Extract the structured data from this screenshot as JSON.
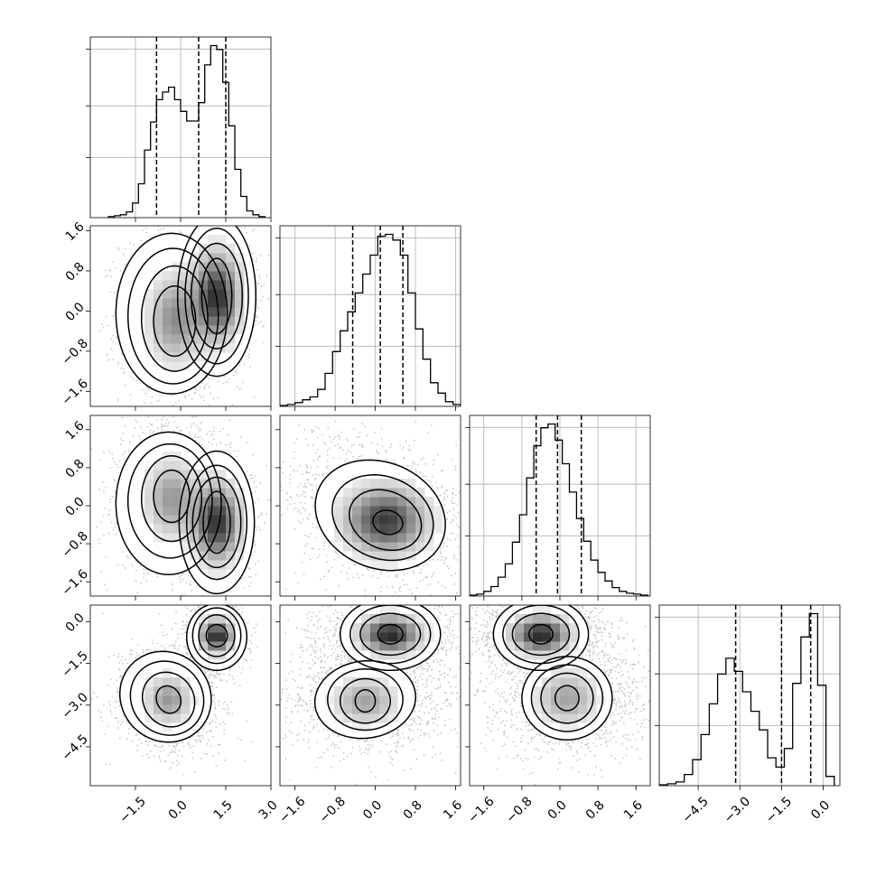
{
  "chart_data": {
    "type": "corner",
    "title": "",
    "n_params": 4,
    "ranges": [
      [
        -3.0,
        3.0
      ],
      [
        -1.9,
        1.7
      ],
      [
        -1.9,
        1.9
      ],
      [
        -5.9,
        0.6
      ]
    ],
    "ticks": [
      [
        "-1.5",
        "0.0",
        "1.5",
        "3.0"
      ],
      [
        "-1.6",
        "-0.8",
        "0.0",
        "0.8",
        "1.6"
      ],
      [
        "-1.6",
        "-0.8",
        "0.0",
        "0.8",
        "1.6"
      ],
      [
        "-4.5",
        "-3.0",
        "-1.5",
        "0.0"
      ]
    ],
    "grid": true,
    "quantiles": [
      [
        -0.8,
        0.6,
        1.5
      ],
      [
        -0.45,
        0.1,
        0.55
      ],
      [
        -0.5,
        -0.05,
        0.45
      ],
      [
        -3.15,
        -1.5,
        -0.45
      ]
    ],
    "histograms": [
      {
        "bin_edges": [
          -2.4,
          -2.2,
          -2.0,
          -1.8,
          -1.6,
          -1.4,
          -1.2,
          -1.0,
          -0.8,
          -0.6,
          -0.4,
          -0.2,
          0.0,
          0.2,
          0.4,
          0.6,
          0.8,
          1.0,
          1.2,
          1.4,
          1.6,
          1.8,
          2.0,
          2.2,
          2.4,
          2.6,
          2.8
        ],
        "counts": [
          1,
          2,
          3,
          6,
          15,
          35,
          70,
          99,
          122,
          130,
          135,
          122,
          110,
          100,
          100,
          119,
          158,
          178,
          174,
          140,
          95,
          50,
          22,
          7,
          3,
          1
        ]
      },
      {
        "bin_edges": [
          -1.9,
          -1.75,
          -1.6,
          -1.45,
          -1.3,
          -1.15,
          -1.0,
          -0.85,
          -0.7,
          -0.55,
          -0.4,
          -0.25,
          -0.1,
          0.05,
          0.2,
          0.35,
          0.5,
          0.65,
          0.8,
          0.95,
          1.1,
          1.25,
          1.4,
          1.55,
          1.7
        ],
        "counts": [
          1,
          2,
          4,
          7,
          10,
          18,
          35,
          58,
          80,
          100,
          120,
          140,
          160,
          180,
          182,
          176,
          160,
          120,
          82,
          50,
          25,
          14,
          5,
          2
        ]
      },
      {
        "bin_edges": [
          -1.9,
          -1.75,
          -1.6,
          -1.45,
          -1.3,
          -1.15,
          -1.0,
          -0.85,
          -0.7,
          -0.55,
          -0.4,
          -0.25,
          -0.1,
          0.05,
          0.2,
          0.35,
          0.5,
          0.65,
          0.8,
          0.95,
          1.1,
          1.25,
          1.4,
          1.55,
          1.7,
          1.85
        ],
        "counts": [
          1,
          2,
          5,
          10,
          20,
          34,
          57,
          86,
          125,
          159,
          178,
          182,
          165,
          140,
          110,
          82,
          58,
          38,
          25,
          16,
          9,
          5,
          3,
          2,
          1
        ]
      },
      {
        "bin_edges": [
          -5.9,
          -5.6,
          -5.3,
          -5.0,
          -4.7,
          -4.4,
          -4.1,
          -3.8,
          -3.5,
          -3.2,
          -2.9,
          -2.6,
          -2.3,
          -2.0,
          -1.7,
          -1.4,
          -1.1,
          -0.8,
          -0.5,
          -0.2,
          0.1,
          0.4
        ],
        "counts": [
          1,
          2,
          4,
          12,
          28,
          55,
          88,
          120,
          137,
          123,
          101,
          80,
          60,
          30,
          20,
          40,
          110,
          160,
          185,
          108,
          10
        ]
      }
    ],
    "pairs": [
      {
        "x": 0,
        "y": 1,
        "contours": [
          {
            "level": 0.39,
            "rings": [
              [
                -0.2,
                -0.2,
                0.7,
                0.7,
                0
              ],
              [
                1.2,
                0.3,
                0.5,
                0.75,
                0
              ]
            ]
          },
          {
            "level": 0.86,
            "rings": [
              [
                -0.2,
                -0.15,
                1.1,
                1.05,
                0
              ],
              [
                1.2,
                0.3,
                0.85,
                1.05,
                0
              ]
            ]
          },
          {
            "level": 1.18,
            "rings": [
              [
                -0.25,
                -0.1,
                1.5,
                1.35,
                0
              ],
              [
                1.2,
                0.3,
                1.05,
                1.35,
                0
              ]
            ]
          },
          {
            "level": 1.5,
            "rings": [
              [
                -0.3,
                -0.05,
                1.85,
                1.6,
                0
              ],
              [
                1.2,
                0.3,
                1.3,
                1.6,
                0
              ]
            ]
          }
        ],
        "density_blobs": [
          [
            -0.2,
            -0.15,
            0.8,
            0.8,
            0.5
          ],
          [
            1.2,
            0.3,
            0.7,
            0.8,
            0.9
          ]
        ],
        "scatter_blobs": [
          [
            -0.2,
            -0.15,
            0.9,
            0.85,
            0
          ],
          [
            1.2,
            0.3,
            0.6,
            0.7,
            0
          ]
        ]
      },
      {
        "x": 0,
        "y": 2,
        "contours": [
          {
            "level": 0.39,
            "rings": [
              [
                -0.3,
                0.2,
                0.6,
                0.55,
                0
              ],
              [
                1.2,
                -0.35,
                0.45,
                0.65,
                0
              ]
            ]
          },
          {
            "level": 0.86,
            "rings": [
              [
                -0.3,
                0.15,
                1.0,
                0.9,
                0
              ],
              [
                1.2,
                -0.35,
                0.8,
                0.95,
                0
              ]
            ]
          },
          {
            "level": 1.18,
            "rings": [
              [
                -0.35,
                0.1,
                1.4,
                1.2,
                0
              ],
              [
                1.2,
                -0.35,
                1.0,
                1.2,
                0
              ]
            ]
          },
          {
            "level": 1.5,
            "rings": [
              [
                -0.4,
                0.05,
                1.75,
                1.5,
                0
              ],
              [
                1.2,
                -0.35,
                1.25,
                1.5,
                0
              ]
            ]
          }
        ],
        "density_blobs": [
          [
            -0.3,
            0.15,
            0.8,
            0.75,
            0.45
          ],
          [
            1.2,
            -0.35,
            0.7,
            0.75,
            0.9
          ]
        ],
        "scatter_blobs": [
          [
            -0.3,
            0.2,
            0.9,
            0.8,
            0
          ],
          [
            1.2,
            -0.35,
            0.6,
            0.65,
            0
          ]
        ]
      },
      {
        "x": 1,
        "y": 2,
        "contours": [
          {
            "level": 0.39,
            "rings": [
              [
                0.25,
                -0.35,
                0.3,
                0.25,
                -0.3
              ]
            ]
          },
          {
            "level": 0.86,
            "rings": [
              [
                0.2,
                -0.3,
                0.75,
                0.6,
                -0.5
              ]
            ]
          },
          {
            "level": 1.18,
            "rings": [
              [
                0.15,
                -0.25,
                1.05,
                0.85,
                -0.5
              ]
            ]
          },
          {
            "level": 1.5,
            "rings": [
              [
                0.1,
                -0.2,
                1.35,
                1.1,
                -0.5
              ]
            ]
          }
        ],
        "density_blobs": [
          [
            0.2,
            -0.3,
            0.75,
            0.65,
            0.85
          ]
        ],
        "scatter_blobs": [
          [
            0.1,
            -0.15,
            1.0,
            0.75,
            -0.5
          ]
        ]
      },
      {
        "x": 0,
        "y": 3,
        "contours": [
          {
            "level": 0.39,
            "rings": [
              [
                -0.4,
                -2.8,
                0.4,
                0.5,
                0.3
              ],
              [
                1.2,
                -0.5,
                0.35,
                0.4,
                0
              ]
            ]
          },
          {
            "level": 0.86,
            "rings": [
              [
                -0.4,
                -2.8,
                0.85,
                1.0,
                0.35
              ],
              [
                1.2,
                -0.5,
                0.6,
                0.75,
                0
              ]
            ]
          },
          {
            "level": 1.18,
            "rings": [
              [
                -0.45,
                -2.75,
                1.2,
                1.35,
                0.35
              ],
              [
                1.2,
                -0.5,
                0.8,
                1.0,
                0
              ]
            ]
          },
          {
            "level": 1.5,
            "rings": [
              [
                -0.5,
                -2.7,
                1.5,
                1.65,
                0.35
              ],
              [
                1.2,
                -0.55,
                1.0,
                1.2,
                0
              ]
            ]
          }
        ],
        "density_blobs": [
          [
            -0.4,
            -2.8,
            0.7,
            0.8,
            0.45
          ],
          [
            1.2,
            -0.5,
            0.5,
            0.55,
            0.95
          ]
        ],
        "scatter_blobs": [
          [
            -0.4,
            -2.8,
            0.85,
            0.95,
            0.35
          ],
          [
            1.2,
            -0.5,
            0.45,
            0.6,
            0
          ]
        ]
      },
      {
        "x": 1,
        "y": 3,
        "contours": [
          {
            "level": 0.39,
            "rings": [
              [
                0.3,
                -0.45,
                0.25,
                0.35,
                0
              ],
              [
                -0.2,
                -2.85,
                0.2,
                0.4,
                0
              ]
            ]
          },
          {
            "level": 0.86,
            "rings": [
              [
                0.3,
                -0.45,
                0.6,
                0.75,
                0
              ],
              [
                -0.2,
                -2.85,
                0.5,
                0.8,
                0
              ]
            ]
          },
          {
            "level": 1.18,
            "rings": [
              [
                0.3,
                -0.45,
                0.8,
                1.05,
                0
              ],
              [
                -0.2,
                -2.8,
                0.75,
                1.1,
                0
              ]
            ]
          },
          {
            "level": 1.5,
            "rings": [
              [
                0.3,
                -0.45,
                1.0,
                1.3,
                0
              ],
              [
                -0.2,
                -2.8,
                1.0,
                1.4,
                -0.1
              ]
            ]
          }
        ],
        "density_blobs": [
          [
            0.3,
            -0.45,
            0.55,
            0.6,
            0.95
          ],
          [
            -0.2,
            -2.85,
            0.6,
            0.8,
            0.4
          ]
        ],
        "scatter_blobs": [
          [
            0.3,
            -0.45,
            0.7,
            0.7,
            0
          ],
          [
            -0.15,
            -2.8,
            0.85,
            1.0,
            0
          ]
        ]
      },
      {
        "x": 2,
        "y": 3,
        "contours": [
          {
            "level": 0.39,
            "rings": [
              [
                -0.4,
                -0.45,
                0.25,
                0.35,
                0
              ],
              [
                0.15,
                -2.75,
                0.25,
                0.45,
                0
              ]
            ]
          },
          {
            "level": 0.86,
            "rings": [
              [
                -0.4,
                -0.45,
                0.6,
                0.75,
                0
              ],
              [
                0.15,
                -2.75,
                0.55,
                0.9,
                0
              ]
            ]
          },
          {
            "level": 1.18,
            "rings": [
              [
                -0.4,
                -0.45,
                0.8,
                1.05,
                0
              ],
              [
                0.15,
                -2.75,
                0.75,
                1.2,
                0
              ]
            ]
          },
          {
            "level": 1.5,
            "rings": [
              [
                -0.4,
                -0.45,
                1.0,
                1.3,
                0
              ],
              [
                0.15,
                -2.75,
                0.95,
                1.5,
                0
              ]
            ]
          }
        ],
        "density_blobs": [
          [
            -0.4,
            -0.45,
            0.55,
            0.6,
            0.95
          ],
          [
            0.15,
            -2.75,
            0.6,
            0.9,
            0.4
          ]
        ],
        "scatter_blobs": [
          [
            -0.4,
            -0.45,
            0.75,
            0.7,
            0
          ],
          [
            0.2,
            -2.75,
            0.85,
            1.05,
            0
          ]
        ]
      }
    ]
  }
}
